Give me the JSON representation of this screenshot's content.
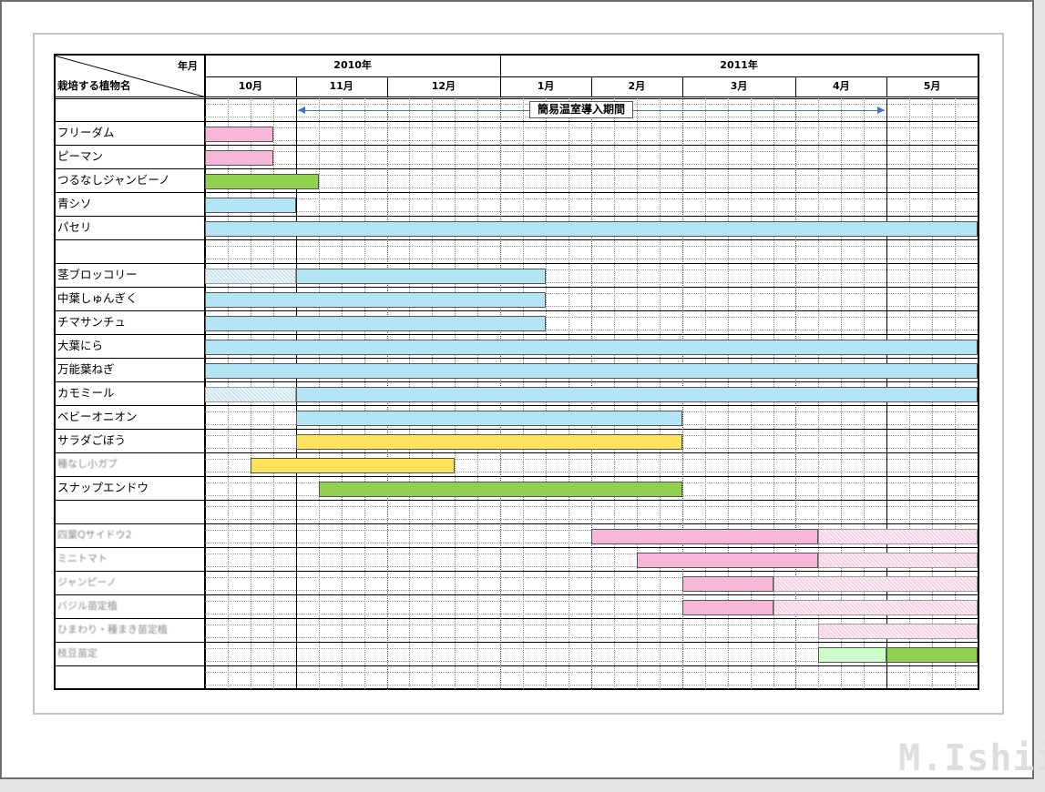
{
  "header": {
    "year_month_label": "年月",
    "plant_name_label": "栽培する植物名",
    "years": [
      {
        "label": "2010年"
      },
      {
        "label": "2011年"
      }
    ],
    "months": [
      "10月",
      "11月",
      "12月",
      "1月",
      "2月",
      "3月",
      "4月",
      "5月"
    ]
  },
  "greenhouse_period": {
    "label": "簡易温室導入期間",
    "start": "10月下旬",
    "end": "5月上旬"
  },
  "colors": {
    "pink": "#f7b7d9",
    "pink_hatched": "#f9cfe6",
    "green": "#92d050",
    "light_green": "#ccffcc",
    "blue": "#b3e5f5",
    "blue_hatched": "#cbe6f2",
    "yellow": "#fbe45b",
    "period_arrow": "#4472c4"
  },
  "plants": [
    {
      "name": "",
      "bars": []
    },
    {
      "name": "フリーダム",
      "bars": [
        {
          "from": 0,
          "to": 3,
          "color": "pink"
        }
      ]
    },
    {
      "name": "ピーマン",
      "bars": [
        {
          "from": 0,
          "to": 3,
          "color": "pink"
        }
      ]
    },
    {
      "name": "つるなしジャンビーノ",
      "bars": [
        {
          "from": 0,
          "to": 5,
          "color": "green"
        }
      ]
    },
    {
      "name": "青シソ",
      "bars": [
        {
          "from": 0,
          "to": 4,
          "color": "blue"
        }
      ]
    },
    {
      "name": "パセリ",
      "bars": [
        {
          "from": 0,
          "to": 34,
          "color": "blue"
        }
      ]
    },
    {
      "name": "",
      "bars": []
    },
    {
      "name": "茎ブロッコリー",
      "bars": [
        {
          "from": 0,
          "to": 4,
          "color": "blue_hatched"
        },
        {
          "from": 4,
          "to": 15,
          "color": "blue"
        }
      ]
    },
    {
      "name": "中葉しゅんぎく",
      "bars": [
        {
          "from": 0,
          "to": 15,
          "color": "blue"
        }
      ]
    },
    {
      "name": "チマサンチュ",
      "bars": [
        {
          "from": 0,
          "to": 15,
          "color": "blue"
        }
      ]
    },
    {
      "name": "大葉にら",
      "bars": [
        {
          "from": 0,
          "to": 34,
          "color": "blue"
        }
      ]
    },
    {
      "name": "万能葉ねぎ",
      "bars": [
        {
          "from": 0,
          "to": 34,
          "color": "blue"
        }
      ]
    },
    {
      "name": "カモミール",
      "bars": [
        {
          "from": 0,
          "to": 4,
          "color": "blue_hatched"
        },
        {
          "from": 4,
          "to": 34,
          "color": "blue"
        }
      ]
    },
    {
      "name": "ベビーオニオン",
      "bars": [
        {
          "from": 4,
          "to": 21,
          "color": "blue"
        }
      ]
    },
    {
      "name": "サラダごぼう",
      "bars": [
        {
          "from": 4,
          "to": 21,
          "color": "yellow"
        }
      ]
    },
    {
      "name": "種なし小ガブ",
      "blur": true,
      "bars": [
        {
          "from": 2,
          "to": 11,
          "color": "yellow"
        }
      ]
    },
    {
      "name": "スナップエンドウ",
      "bars": [
        {
          "from": 5,
          "to": 21,
          "color": "green"
        }
      ]
    },
    {
      "name": "",
      "bars": []
    },
    {
      "name": "四葉Qサイドウ2",
      "blur": true,
      "bars": [
        {
          "from": 17,
          "to": 27,
          "color": "pink"
        },
        {
          "from": 27,
          "to": 34,
          "color": "pink_hatched"
        }
      ]
    },
    {
      "name": "ミニトマト",
      "blur": true,
      "bars": [
        {
          "from": 19,
          "to": 27,
          "color": "pink"
        },
        {
          "from": 27,
          "to": 34,
          "color": "pink_hatched"
        }
      ]
    },
    {
      "name": "ジャンピーノ",
      "blur": true,
      "bars": [
        {
          "from": 21,
          "to": 25,
          "color": "pink"
        },
        {
          "from": 25,
          "to": 34,
          "color": "pink_hatched"
        }
      ]
    },
    {
      "name": "バジル苗定植",
      "blur": true,
      "bars": [
        {
          "from": 21,
          "to": 25,
          "color": "pink"
        },
        {
          "from": 25,
          "to": 34,
          "color": "pink_hatched"
        }
      ]
    },
    {
      "name": "ひまわり・種まき苗定植",
      "blur": true,
      "bars": [
        {
          "from": 27,
          "to": 34,
          "color": "pink_hatched"
        }
      ]
    },
    {
      "name": "枝豆苗定",
      "blur": true,
      "bars": [
        {
          "from": 27,
          "to": 30,
          "color": "light_green"
        },
        {
          "from": 30,
          "to": 34,
          "color": "green"
        }
      ]
    },
    {
      "name": "",
      "bars": []
    }
  ],
  "watermark": "M.Ishii"
}
